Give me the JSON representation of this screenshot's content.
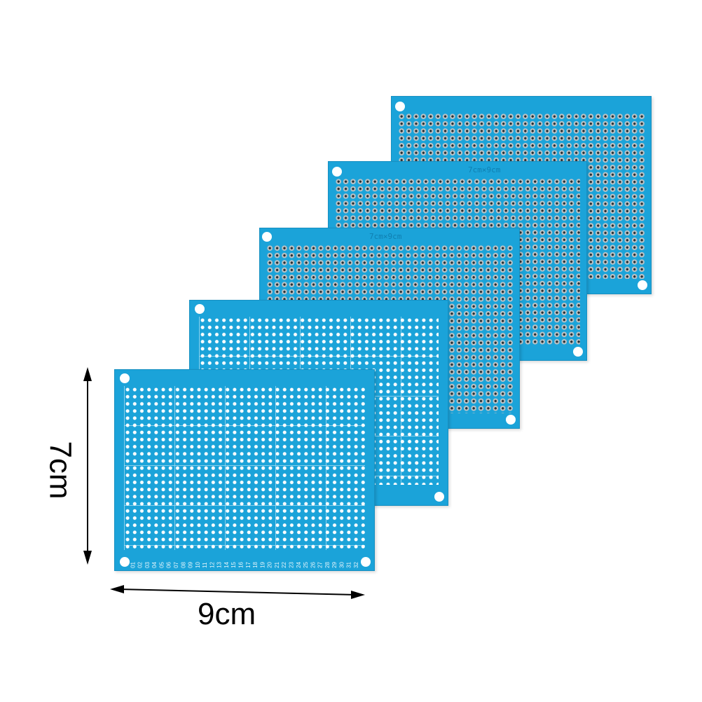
{
  "dimensions": {
    "height_label": "7cm",
    "width_label": "9cm"
  },
  "boards": [
    {
      "silkscreen": "",
      "style": "pad"
    },
    {
      "silkscreen": "7cm×9cm",
      "style": "pad"
    },
    {
      "silkscreen": "7cm×9cm",
      "style": "pad"
    },
    {
      "silkscreen": "",
      "style": "white"
    },
    {
      "silkscreen": "",
      "style": "white"
    }
  ],
  "column_labels": [
    "32",
    "31",
    "30",
    "29",
    "28",
    "27",
    "26",
    "25",
    "24",
    "23",
    "22",
    "21",
    "20",
    "19",
    "18",
    "17",
    "16",
    "15",
    "14",
    "13",
    "12",
    "11",
    "10",
    "09",
    "08",
    "07",
    "06",
    "05",
    "04",
    "03",
    "02",
    "01"
  ],
  "colors": {
    "board": "#1ba3d9",
    "pad": "#b9c2c6",
    "background": "#ffffff"
  }
}
